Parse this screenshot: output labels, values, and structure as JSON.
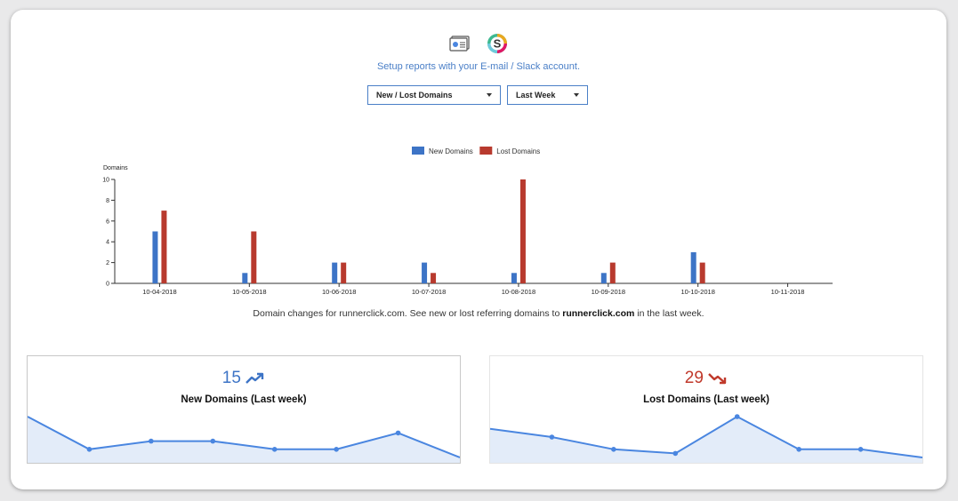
{
  "header": {
    "setup_text": "Setup reports with your E-mail / Slack account.",
    "email_icon": "email-report-icon",
    "slack_icon": "slack-icon"
  },
  "filters": {
    "report_type": "New / Lost Domains",
    "period": "Last Week"
  },
  "colors": {
    "new": "#3d74c6",
    "lost": "#b83a2e",
    "spark_line": "#4a86e0",
    "spark_fill": "#e3ecf9"
  },
  "chart_data": {
    "type": "bar",
    "ylabel": "Domains",
    "xlabel": "",
    "ylim": [
      0,
      10
    ],
    "yticks": [
      0,
      2,
      4,
      6,
      8,
      10
    ],
    "legend_position": "top-center",
    "grid": false,
    "categories": [
      "10-04-2018",
      "10-05-2018",
      "10-06-2018",
      "10-07-2018",
      "10-08-2018",
      "10-09-2018",
      "10-10-2018",
      "10-11-2018"
    ],
    "series": [
      {
        "name": "New Domains",
        "values": [
          5,
          1,
          2,
          2,
          1,
          1,
          3,
          0
        ]
      },
      {
        "name": "Lost Domains",
        "values": [
          7,
          5,
          2,
          1,
          10,
          2,
          2,
          0
        ]
      }
    ]
  },
  "caption": {
    "prefix": "Domain changes for runnerclick.com. See new or lost referring domains to ",
    "domain": "runnerclick.com",
    "suffix": " in the last week."
  },
  "stats": {
    "new": {
      "value": "15",
      "label": "New Domains (Last week)",
      "trend": [
        5,
        1,
        2,
        2,
        1,
        1,
        3,
        0
      ]
    },
    "lost": {
      "value": "29",
      "label": "Lost Domains (Last week)",
      "trend": [
        7,
        5,
        2,
        1,
        10,
        2,
        2,
        0
      ]
    }
  }
}
